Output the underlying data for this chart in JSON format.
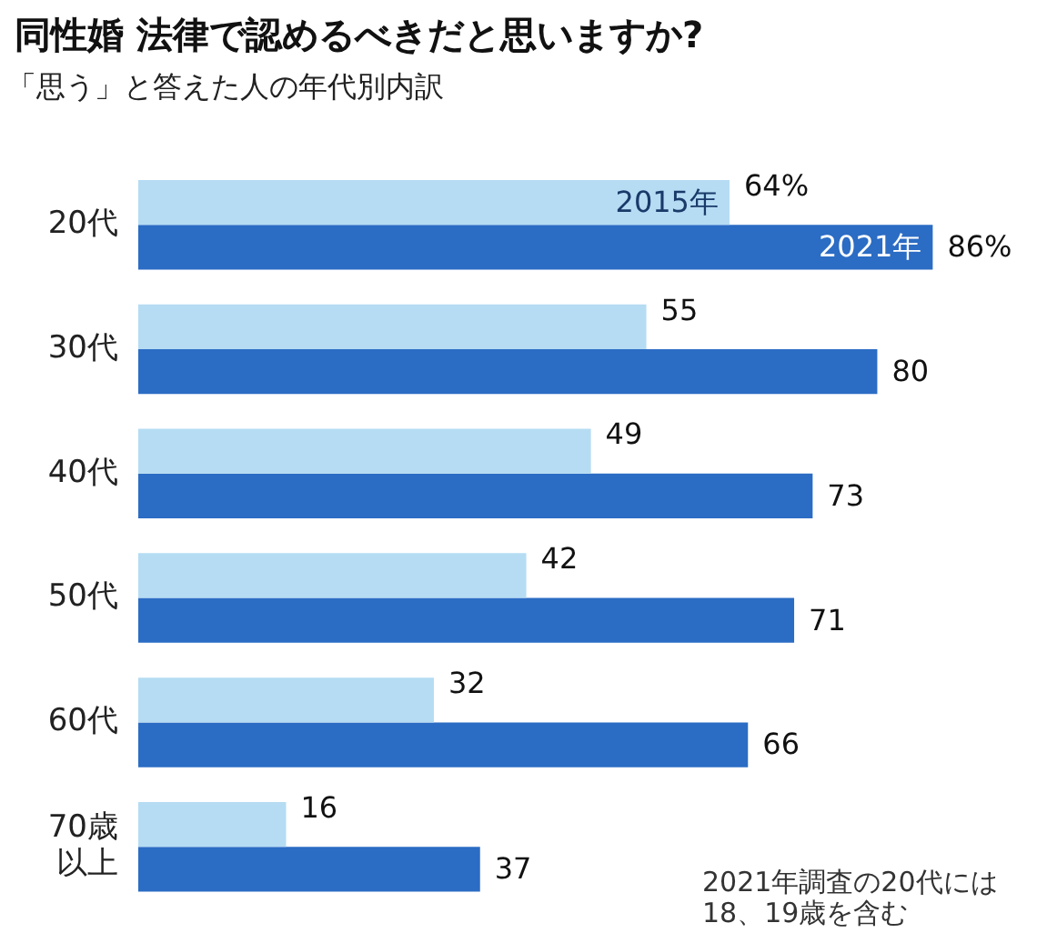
{
  "chart_data": {
    "type": "bar",
    "orientation": "horizontal",
    "title": "同性婚 法律で認めるべきだと思いますか?",
    "subtitle": "「思う」と答えた人の年代別内訳",
    "categories": [
      "20代",
      "30代",
      "40代",
      "50代",
      "60代",
      "70歳以上"
    ],
    "series": [
      {
        "name": "2015年",
        "color": "#b5dcf3",
        "values": [
          64,
          55,
          49,
          42,
          32,
          16
        ],
        "value_labels": [
          "64%",
          "55",
          "49",
          "42",
          "32",
          "16"
        ]
      },
      {
        "name": "2021年",
        "color": "#2b6cc4",
        "values": [
          86,
          80,
          73,
          71,
          66,
          37
        ],
        "value_labels": [
          "86%",
          "80",
          "73",
          "71",
          "66",
          "37"
        ]
      }
    ],
    "legend": false,
    "annotations": [
      "2021年調査の20代には18、19歳を含む"
    ]
  }
}
